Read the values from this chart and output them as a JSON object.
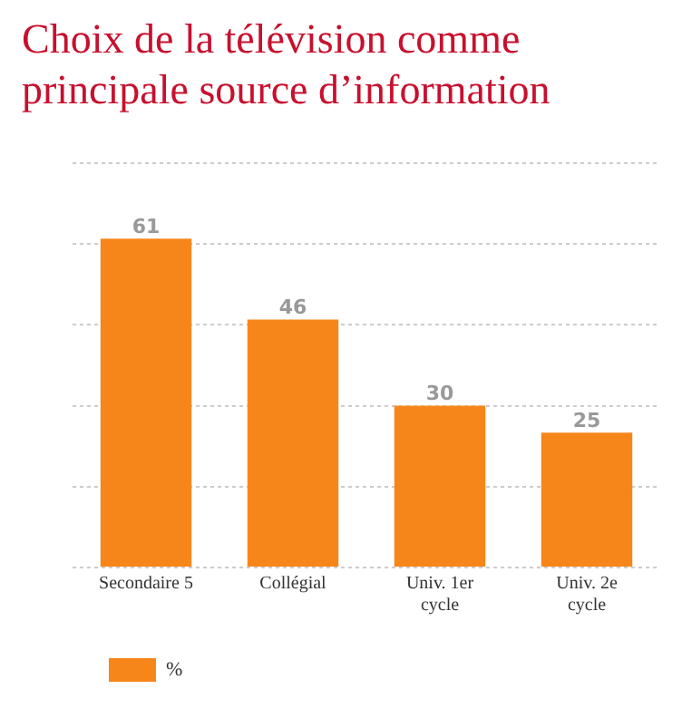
{
  "chart_data": {
    "type": "bar",
    "title": "Choix de la télévision comme principale source d’information",
    "categories": [
      "Secondaire 5",
      "Collégial",
      "Univ. 1er cycle",
      "Univ. 2e cycle"
    ],
    "series": [
      {
        "name": "%",
        "color": "#f7861a",
        "values": [
          61,
          46,
          30,
          25
        ]
      }
    ],
    "ylim": [
      0,
      75
    ],
    "yticks": [
      0,
      15,
      30,
      45,
      60,
      75
    ],
    "grid": "y",
    "tick_labels": "x",
    "data_labels": true,
    "legend": "bottom left"
  }
}
